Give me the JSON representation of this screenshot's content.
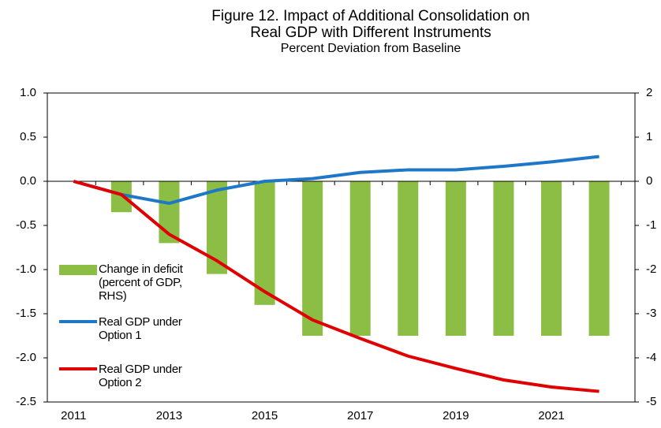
{
  "chart_data": {
    "type": "bar-line",
    "title": "Figure 12. Impact of Additional Consolidation on Real GDP  with Different Instruments",
    "subtitle": "Percent Deviation from Baseline",
    "x": [
      2011,
      2012,
      2013,
      2014,
      2015,
      2016,
      2017,
      2018,
      2019,
      2020,
      2021,
      2022
    ],
    "xlim": [
      2010.45,
      2022.75
    ],
    "xticks": [
      2011,
      2013,
      2015,
      2017,
      2019,
      2021
    ],
    "ylim": [
      -2.5,
      1.0
    ],
    "yticks": [
      {
        "value": 1.0,
        "label": "1.0"
      },
      0.5,
      {
        "value": 0.0,
        "label": "0.0"
      },
      -0.5,
      {
        "value": -1.0,
        "label": "-1.0"
      },
      -1.5,
      {
        "value": -2.0,
        "label": "-2.0"
      },
      -2.5
    ],
    "y2lim": [
      -5,
      2
    ],
    "y2ticks": [
      2,
      1,
      0,
      -1,
      -2,
      -3,
      -4,
      -5
    ],
    "series": [
      {
        "name": "Change in deficit (percent of GDP, RHS)",
        "type": "bar",
        "axis": "y2",
        "color": "#8cbd45",
        "values": [
          null,
          -0.7,
          -1.4,
          -2.1,
          -2.8,
          -3.5,
          -3.5,
          -3.5,
          -3.5,
          -3.5,
          -3.5,
          -3.5
        ]
      },
      {
        "name": "Real GDP under Option 1",
        "type": "line",
        "color": "#1f77c8",
        "values": [
          0,
          -0.15,
          -0.25,
          -0.1,
          0.0,
          0.03,
          0.1,
          0.13,
          0.13,
          0.17,
          0.22,
          0.28
        ]
      },
      {
        "name": "Real GDP under Option 2",
        "type": "line",
        "color": "#e00000",
        "values": [
          0,
          -0.15,
          -0.6,
          -0.9,
          -1.25,
          -1.57,
          -1.78,
          -1.98,
          -2.12,
          -2.25,
          -2.33,
          -2.38
        ]
      }
    ]
  }
}
